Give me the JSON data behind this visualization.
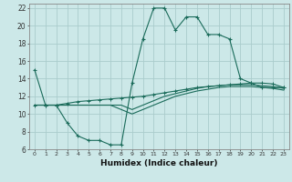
{
  "title": "",
  "xlabel": "Humidex (Indice chaleur)",
  "bg_color": "#cce8e8",
  "grid_color": "#aacccc",
  "line_color": "#1a6b5a",
  "xlim": [
    -0.5,
    23.5
  ],
  "ylim": [
    6,
    22.5
  ],
  "xticks": [
    0,
    1,
    2,
    3,
    4,
    5,
    6,
    7,
    8,
    9,
    10,
    11,
    12,
    13,
    14,
    15,
    16,
    17,
    18,
    19,
    20,
    21,
    22,
    23
  ],
  "yticks": [
    6,
    8,
    10,
    12,
    14,
    16,
    18,
    20,
    22
  ],
  "curve1_x": [
    0,
    1,
    2,
    3,
    4,
    5,
    6,
    7,
    8,
    9,
    10,
    11,
    12,
    13,
    14,
    15,
    16,
    17,
    18,
    19,
    20,
    21,
    22,
    23
  ],
  "curve1_y": [
    15,
    11,
    11,
    9,
    7.5,
    7,
    7,
    6.5,
    6.5,
    13.5,
    18.5,
    22,
    22,
    19.5,
    21,
    21,
    19,
    19,
    18.5,
    14,
    13.5,
    13,
    13,
    13
  ],
  "curve2_x": [
    0,
    1,
    2,
    3,
    4,
    5,
    6,
    7,
    8,
    9,
    10,
    11,
    12,
    13,
    14,
    15,
    16,
    17,
    18,
    19,
    20,
    21,
    22,
    23
  ],
  "curve2_y": [
    11,
    11,
    11,
    11.2,
    11.4,
    11.5,
    11.6,
    11.7,
    11.8,
    11.9,
    12.0,
    12.2,
    12.4,
    12.6,
    12.8,
    13.0,
    13.1,
    13.2,
    13.3,
    13.4,
    13.5,
    13.5,
    13.4,
    13.0
  ],
  "curve3_x": [
    0,
    1,
    2,
    3,
    4,
    5,
    6,
    7,
    8,
    9,
    10,
    11,
    12,
    13,
    14,
    15,
    16,
    17,
    18,
    19,
    20,
    21,
    22,
    23
  ],
  "curve3_y": [
    11,
    11,
    11,
    11.0,
    11.0,
    11.0,
    11.0,
    11.0,
    11.0,
    10.5,
    11.0,
    11.5,
    12.0,
    12.3,
    12.6,
    12.9,
    13.1,
    13.2,
    13.3,
    13.3,
    13.3,
    13.2,
    13.1,
    12.9
  ],
  "curve4_x": [
    0,
    1,
    2,
    3,
    4,
    5,
    6,
    7,
    8,
    9,
    10,
    11,
    12,
    13,
    14,
    15,
    16,
    17,
    18,
    19,
    20,
    21,
    22,
    23
  ],
  "curve4_y": [
    11,
    11,
    11,
    11.0,
    11.0,
    11.0,
    11.0,
    11.0,
    10.5,
    10.0,
    10.5,
    11.0,
    11.5,
    12.0,
    12.3,
    12.6,
    12.8,
    13.0,
    13.1,
    13.1,
    13.1,
    13.0,
    12.9,
    12.7
  ]
}
